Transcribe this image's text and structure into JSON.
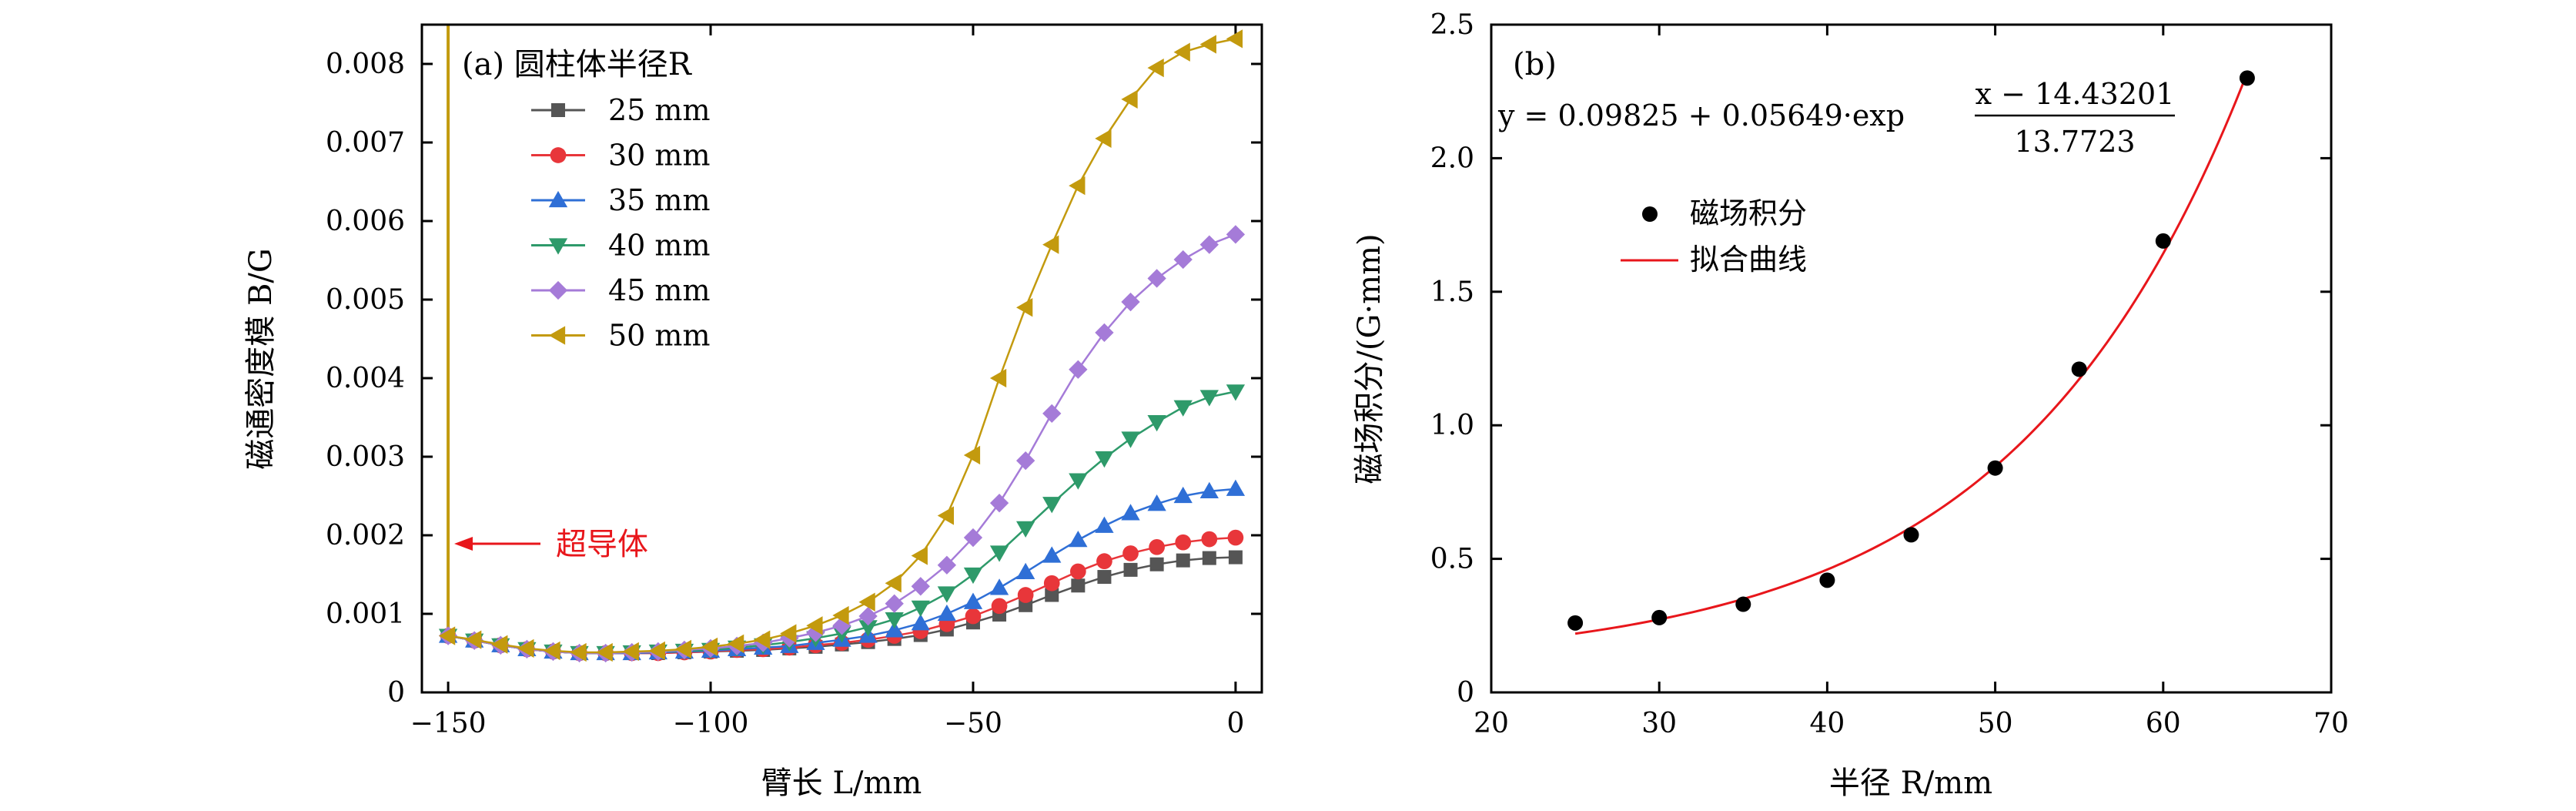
{
  "chart_data": [
    {
      "type": "line",
      "panel_label": "(a) 圆柱体半径R",
      "ylabel": "磁通密度模 B/G",
      "xlabel": "臂长 L/mm",
      "xlim": [
        -155,
        5
      ],
      "ylim": [
        0,
        0.0085
      ],
      "x_ticks": [
        "−150",
        "−100",
        "−50",
        "0"
      ],
      "y_ticks": [
        "0",
        "0.001",
        "0.002",
        "0.003",
        "0.004",
        "0.005",
        "0.006",
        "0.007",
        "0.008"
      ],
      "x": [
        -150,
        -145,
        -140,
        -135,
        -130,
        -125,
        -120,
        -115,
        -110,
        -105,
        -100,
        -95,
        -90,
        -85,
        -80,
        -75,
        -70,
        -65,
        -60,
        -55,
        -50,
        -45,
        -40,
        -35,
        -30,
        -25,
        -20,
        -15,
        -10,
        -5,
        0
      ],
      "series": [
        {
          "name": "25 mm",
          "color": "#555555",
          "marker": "square",
          "values": [
            0.00072,
            0.00066,
            0.0006,
            0.00055,
            0.00052,
            0.0005,
            0.0005,
            0.0005,
            0.0005,
            0.00051,
            0.00052,
            0.00053,
            0.00054,
            0.00056,
            0.00058,
            0.00061,
            0.00064,
            0.00068,
            0.00073,
            0.0008,
            0.00089,
            0.00099,
            0.00111,
            0.00124,
            0.00136,
            0.00147,
            0.00156,
            0.00163,
            0.00168,
            0.00171,
            0.00172
          ]
        },
        {
          "name": "30 mm",
          "color": "#e8363a",
          "marker": "circle",
          "values": [
            0.00072,
            0.00066,
            0.0006,
            0.00055,
            0.00052,
            0.0005,
            0.0005,
            0.0005,
            0.0005,
            0.00051,
            0.00052,
            0.00054,
            0.00055,
            0.00057,
            0.0006,
            0.00063,
            0.00067,
            0.00072,
            0.00078,
            0.00087,
            0.00097,
            0.0011,
            0.00124,
            0.00139,
            0.00154,
            0.00167,
            0.00177,
            0.00185,
            0.00191,
            0.00195,
            0.00197
          ]
        },
        {
          "name": "35 mm",
          "color": "#2f6fd6",
          "marker": "triangle-up",
          "values": [
            0.00072,
            0.00066,
            0.0006,
            0.00055,
            0.00052,
            0.0005,
            0.0005,
            0.0005,
            0.00051,
            0.00052,
            0.00053,
            0.00055,
            0.00057,
            0.00059,
            0.00063,
            0.00067,
            0.00072,
            0.00079,
            0.00088,
            0.001,
            0.00115,
            0.00133,
            0.00153,
            0.00174,
            0.00194,
            0.00212,
            0.00228,
            0.0024,
            0.0025,
            0.00256,
            0.00259
          ]
        },
        {
          "name": "40 mm",
          "color": "#2e9a6a",
          "marker": "triangle-down",
          "values": [
            0.00072,
            0.00066,
            0.0006,
            0.00055,
            0.00052,
            0.0005,
            0.0005,
            0.00051,
            0.00052,
            0.00053,
            0.00054,
            0.00057,
            0.0006,
            0.00064,
            0.00069,
            0.00075,
            0.00083,
            0.00093,
            0.00108,
            0.00126,
            0.0015,
            0.00178,
            0.00209,
            0.0024,
            0.0027,
            0.00298,
            0.00323,
            0.00344,
            0.00363,
            0.00376,
            0.00383
          ]
        },
        {
          "name": "45 mm",
          "color": "#a57bd8",
          "marker": "diamond",
          "values": [
            0.00072,
            0.00066,
            0.0006,
            0.00055,
            0.00052,
            0.0005,
            0.0005,
            0.00051,
            0.00052,
            0.00054,
            0.00056,
            0.00059,
            0.00063,
            0.00069,
            0.00076,
            0.00085,
            0.00097,
            0.00113,
            0.00135,
            0.00162,
            0.00197,
            0.00241,
            0.00295,
            0.00355,
            0.00411,
            0.00458,
            0.00497,
            0.00527,
            0.00551,
            0.0057,
            0.00583
          ]
        },
        {
          "name": "50 mm",
          "color": "#c39a0e",
          "marker": "triangle-left",
          "values": [
            0.00072,
            0.00067,
            0.00061,
            0.00056,
            0.00053,
            0.00051,
            0.00051,
            0.00052,
            0.00053,
            0.00055,
            0.00058,
            0.00062,
            0.00067,
            0.00075,
            0.00085,
            0.00098,
            0.00115,
            0.00139,
            0.00174,
            0.00225,
            0.00302,
            0.004,
            0.0049,
            0.0057,
            0.00645,
            0.00705,
            0.00755,
            0.00795,
            0.00815,
            0.00825,
            0.00832
          ]
        }
      ],
      "superconductor_line": {
        "x": -150,
        "color": "#c39a0e"
      },
      "annotation": {
        "text": "超导体",
        "color": "#e8161b"
      }
    },
    {
      "type": "scatter",
      "panel_label": "(b)",
      "ylabel": "磁场积分/(G·mm)",
      "xlabel": "半径 R/mm",
      "xlim": [
        20,
        70
      ],
      "ylim": [
        0,
        2.5
      ],
      "x_ticks": [
        "20",
        "30",
        "40",
        "50",
        "60",
        "70"
      ],
      "y_ticks": [
        "0",
        "0.5",
        "1.0",
        "1.5",
        "2.0",
        "2.5"
      ],
      "equation": {
        "lhs": "y = 0.09825 + 0.05649·exp",
        "numerator": "x − 14.43201",
        "denominator": "13.7723",
        "coefficients": {
          "y0": 0.09825,
          "A": 0.05649,
          "x0": 14.43201,
          "t": 13.7723
        }
      },
      "points": {
        "name": "磁场积分",
        "color": "#000000",
        "x": [
          25,
          30,
          35,
          40,
          45,
          50,
          55,
          60,
          65
        ],
        "y": [
          0.26,
          0.28,
          0.33,
          0.42,
          0.59,
          0.84,
          1.21,
          1.69,
          2.3
        ]
      },
      "fit": {
        "name": "拟合曲线",
        "color": "#e8161b",
        "x_range": [
          25,
          65
        ]
      }
    }
  ]
}
